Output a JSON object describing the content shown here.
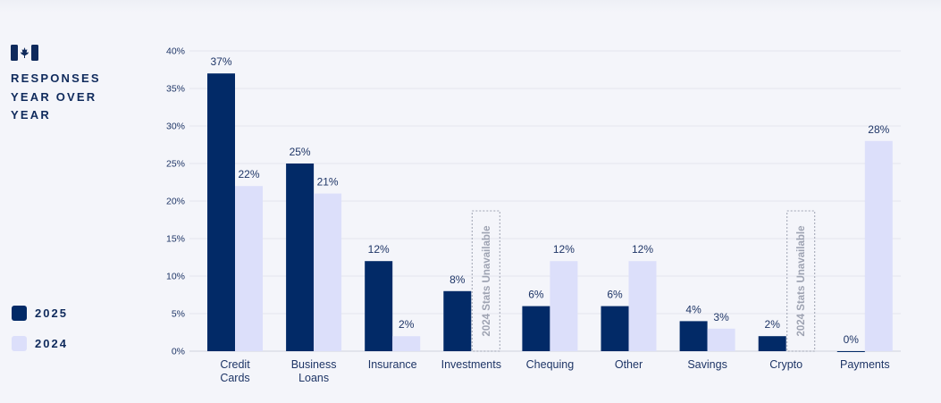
{
  "heading": [
    "RESPONSES",
    "YEAR OVER",
    "YEAR"
  ],
  "colors": {
    "s2025": "#022a67",
    "s2024": "#dcdffa",
    "text": "#1e3566",
    "grid": "#e3e5ee",
    "unavailable": "#9ea3b2"
  },
  "unavailable_label": "2024 Stats Unavailable",
  "legend": [
    {
      "label": "2025",
      "color": "#022a67"
    },
    {
      "label": "2024",
      "color": "#dcdffa"
    }
  ],
  "chart_data": {
    "type": "bar",
    "categories": [
      [
        "Credit",
        "Cards"
      ],
      [
        "Business",
        "Loans"
      ],
      [
        "Insurance"
      ],
      [
        "Investments"
      ],
      [
        "Chequing"
      ],
      [
        "Other"
      ],
      [
        "Savings"
      ],
      [
        "Crypto"
      ],
      [
        "Payments"
      ]
    ],
    "series": [
      {
        "name": "2025",
        "values": [
          37,
          25,
          12,
          8,
          6,
          6,
          4,
          2,
          0
        ],
        "labels": [
          "37%",
          "25%",
          "12%",
          "8%",
          "6%",
          "6%",
          "4%",
          "2%",
          "0%"
        ]
      },
      {
        "name": "2024",
        "values": [
          22,
          21,
          2,
          null,
          12,
          12,
          3,
          null,
          28
        ],
        "labels": [
          "22%",
          "21%",
          "2%",
          null,
          "12%",
          "12%",
          "3%",
          null,
          "28%"
        ]
      }
    ],
    "y_ticks": [
      "0%",
      "5%",
      "10%",
      "15%",
      "20%",
      "25%",
      "30%",
      "35%",
      "40%"
    ],
    "ylim": [
      0,
      40
    ],
    "grid": true,
    "legend_position": "left"
  }
}
